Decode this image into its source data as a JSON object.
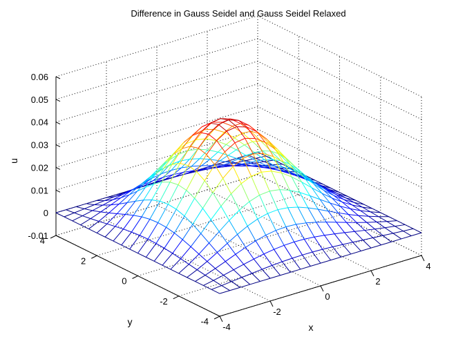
{
  "chart_data": {
    "type": "surface-mesh",
    "title": "Difference in Gauss Seidel and Gauss Seidel Relaxed",
    "xlabel": "x",
    "ylabel": "y",
    "zlabel": "u",
    "xlim": [
      -4,
      4
    ],
    "ylim": [
      -4,
      4
    ],
    "zlim": [
      -0.01,
      0.06
    ],
    "xticks": [
      "-4",
      "-2",
      "0",
      "2",
      "4"
    ],
    "yticks": [
      "-4",
      "-2",
      "0",
      "2",
      "4"
    ],
    "zticks": [
      "-0.01",
      "0",
      "0.01",
      "0.02",
      "0.03",
      "0.04",
      "0.05",
      "0.06"
    ],
    "grid": true,
    "colormap": "jet",
    "surface": {
      "description": "Smooth hump, zero on boundary, peak near x=-1, y=0",
      "peak_value": 0.0485,
      "peak_location": [
        -1,
        0
      ],
      "x_range": [
        -4,
        4
      ],
      "y_range": [
        -4,
        4
      ],
      "resolution": 21
    }
  }
}
